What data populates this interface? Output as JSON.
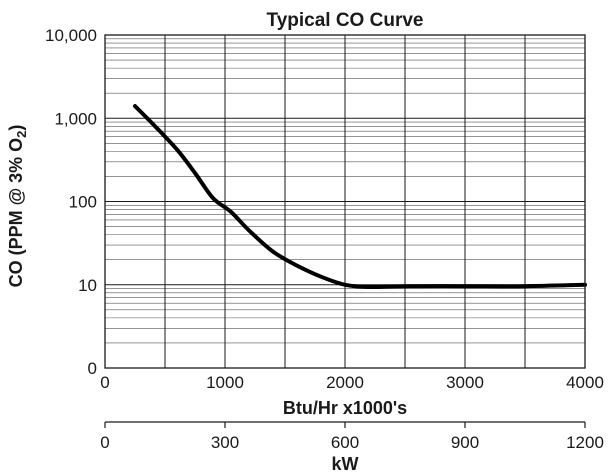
{
  "chart_data": {
    "type": "line",
    "title": "Typical CO Curve",
    "xlabel": "Btu/Hr x1000's",
    "ylabel": "CO (PPM @ 3% O",
    "ylabel_subscript": "2",
    "xlim": [
      0,
      4000
    ],
    "y_scale": "log",
    "ylim_label_bottom": "0",
    "y_ticks": [
      {
        "value": 1,
        "label": "0"
      },
      {
        "value": 10,
        "label": "10"
      },
      {
        "value": 100,
        "label": "100"
      },
      {
        "value": 1000,
        "label": "1,000"
      },
      {
        "value": 10000,
        "label": "10,000"
      }
    ],
    "x_ticks": [
      {
        "value": 0,
        "label": "0"
      },
      {
        "value": 1000,
        "label": "1000"
      },
      {
        "value": 2000,
        "label": "2000"
      },
      {
        "value": 3000,
        "label": "3000"
      },
      {
        "value": 4000,
        "label": "4000"
      }
    ],
    "secondary_x_axis": {
      "label": "kW",
      "xlim": [
        0,
        1200
      ],
      "ticks": [
        {
          "value": 0,
          "label": "0"
        },
        {
          "value": 300,
          "label": "300"
        },
        {
          "value": 600,
          "label": "600"
        },
        {
          "value": 900,
          "label": "900"
        },
        {
          "value": 1200,
          "label": "1200"
        }
      ]
    },
    "grid": true,
    "series": [
      {
        "color": "#000000",
        "x": [
          250,
          400,
          600,
          750,
          900,
          1050,
          1200,
          1400,
          1600,
          1800,
          2000,
          2200,
          2500,
          3000,
          3500,
          4000
        ],
        "y": [
          1400,
          850,
          420,
          220,
          110,
          75,
          45,
          25,
          17,
          12.5,
          10,
          9.4,
          9.6,
          9.6,
          9.6,
          10
        ]
      }
    ]
  }
}
